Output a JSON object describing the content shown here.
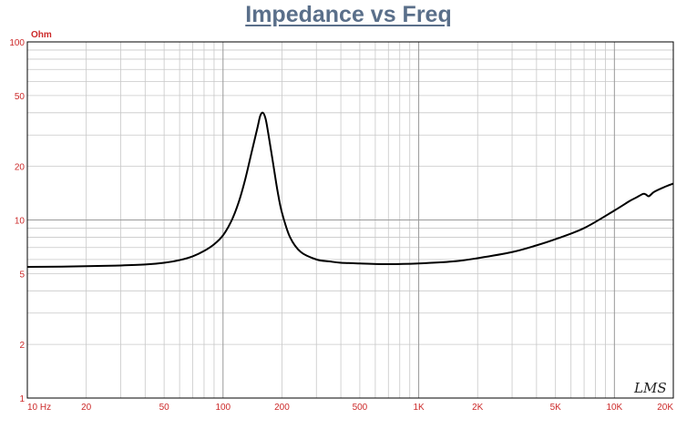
{
  "chart_data": {
    "type": "line",
    "title": "Impedance vs Freq",
    "ylabel": "Ohm",
    "xlabel": "",
    "x_scale": "log",
    "y_scale": "log",
    "xlim": [
      10,
      20000
    ],
    "ylim": [
      1,
      100
    ],
    "grid": true,
    "x_ticks": [
      {
        "value": 10,
        "label": "10 Hz"
      },
      {
        "value": 20,
        "label": "20"
      },
      {
        "value": 50,
        "label": "50"
      },
      {
        "value": 100,
        "label": "100"
      },
      {
        "value": 200,
        "label": "200"
      },
      {
        "value": 500,
        "label": "500"
      },
      {
        "value": 1000,
        "label": "1K"
      },
      {
        "value": 2000,
        "label": "2K"
      },
      {
        "value": 5000,
        "label": "5K"
      },
      {
        "value": 10000,
        "label": "10K"
      },
      {
        "value": 20000,
        "label": "20K"
      }
    ],
    "y_ticks": [
      {
        "value": 1,
        "label": "1"
      },
      {
        "value": 2,
        "label": "2"
      },
      {
        "value": 5,
        "label": "5"
      },
      {
        "value": 10,
        "label": "10"
      },
      {
        "value": 20,
        "label": "20"
      },
      {
        "value": 50,
        "label": "50"
      },
      {
        "value": 100,
        "label": "100"
      }
    ],
    "series": [
      {
        "color": "#000000",
        "x": [
          10,
          15,
          20,
          30,
          40,
          50,
          60,
          70,
          80,
          90,
          100,
          110,
          120,
          130,
          140,
          150,
          155,
          160,
          165,
          170,
          180,
          190,
          200,
          220,
          250,
          300,
          350,
          400,
          500,
          700,
          1000,
          1500,
          2000,
          3000,
          4000,
          5000,
          7000,
          10000,
          12000,
          13000,
          14000,
          14500,
          15000,
          16000,
          18000,
          20000
        ],
        "y": [
          5.45,
          5.47,
          5.5,
          5.55,
          5.62,
          5.75,
          5.95,
          6.25,
          6.7,
          7.3,
          8.2,
          9.8,
          12.5,
          17.0,
          24.0,
          33.0,
          38.5,
          40.0,
          37.0,
          31.0,
          21.0,
          14.5,
          11.0,
          8.0,
          6.6,
          6.0,
          5.85,
          5.75,
          5.7,
          5.65,
          5.7,
          5.85,
          6.1,
          6.6,
          7.2,
          7.8,
          9.0,
          11.3,
          12.8,
          13.4,
          14.0,
          13.9,
          13.6,
          14.4,
          15.3,
          16.0
        ]
      }
    ]
  },
  "logo": {
    "text": "LMS"
  }
}
